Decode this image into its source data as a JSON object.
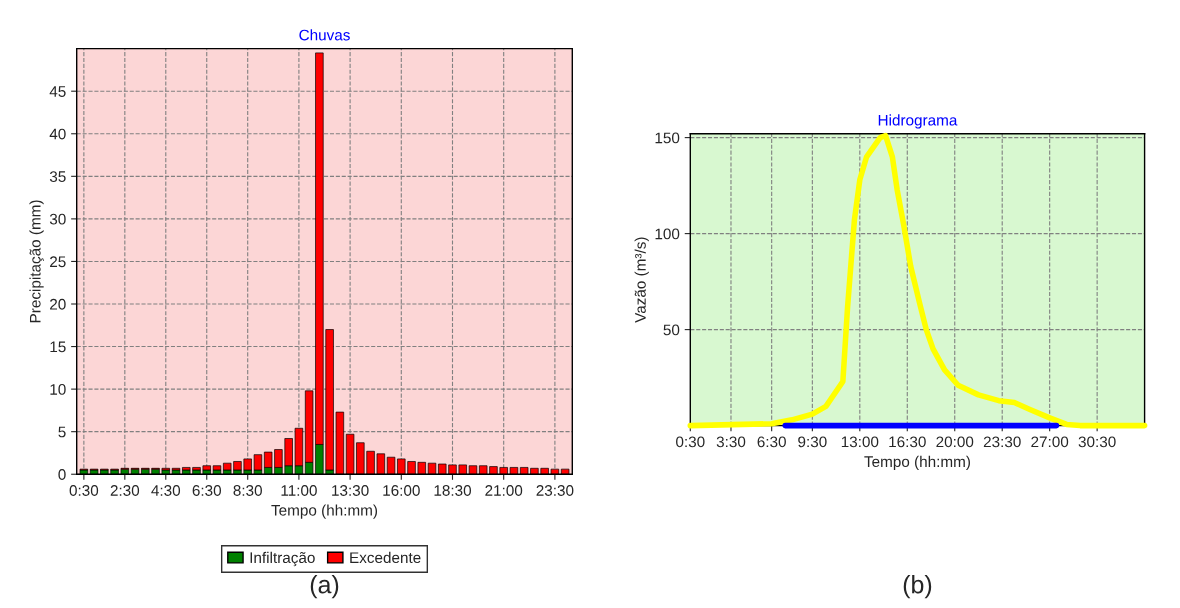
{
  "chart_data": [
    {
      "type": "bar",
      "title": "Chuvas",
      "xlabel": "Tempo (hh:mm)",
      "ylabel": "Precipitação (mm)",
      "stacked": true,
      "categories": [
        "0:30",
        null,
        null,
        null,
        "2:30",
        null,
        null,
        null,
        "4:30",
        null,
        null,
        null,
        "6:30",
        null,
        null,
        null,
        "8:30",
        null,
        null,
        null,
        null,
        "11:00",
        null,
        null,
        null,
        null,
        "13:30",
        null,
        null,
        null,
        null,
        "16:00",
        null,
        null,
        null,
        null,
        "18:30",
        null,
        null,
        null,
        null,
        "21:00",
        null,
        null,
        null,
        null,
        "23:30",
        null
      ],
      "series": [
        {
          "name": "Infiltração",
          "color": "#008000",
          "values": [
            0.5,
            0.5,
            0.5,
            0.5,
            0.6,
            0.6,
            0.6,
            0.6,
            0.5,
            0.5,
            0.5,
            0.5,
            0.5,
            0.5,
            0.5,
            0.5,
            0.5,
            0.5,
            0.8,
            0.8,
            1.0,
            1.0,
            1.4,
            3.5,
            0.5,
            0,
            0,
            0,
            0,
            0,
            0,
            0,
            0,
            0,
            0,
            0,
            0,
            0,
            0,
            0,
            0,
            0,
            0,
            0,
            0,
            0,
            0,
            0
          ]
        },
        {
          "name": "Excedente",
          "color": "#ff0000",
          "values": [
            0.1,
            0.1,
            0.1,
            0.1,
            0.1,
            0.1,
            0.1,
            0.1,
            0.2,
            0.2,
            0.3,
            0.3,
            0.5,
            0.5,
            0.8,
            1.0,
            1.3,
            1.8,
            1.8,
            2.1,
            3.2,
            4.4,
            8.4,
            46.0,
            16.5,
            7.3,
            4.7,
            3.7,
            2.7,
            2.4,
            2.0,
            1.8,
            1.5,
            1.4,
            1.3,
            1.2,
            1.1,
            1.1,
            1.0,
            1.0,
            0.9,
            0.8,
            0.8,
            0.8,
            0.7,
            0.7,
            0.6,
            0.6
          ]
        }
      ],
      "ylim": [
        0,
        50
      ],
      "yticks": [
        0,
        5,
        10,
        15,
        20,
        25,
        30,
        35,
        40,
        45
      ],
      "grid": true,
      "legend": "bottom",
      "annotations": [
        "(a)"
      ]
    },
    {
      "type": "line",
      "title": "Hidrograma",
      "xlabel": "Tempo (hh:mm)",
      "ylabel": "Vazão (m³/s)",
      "series": [
        {
          "color": "#ffff00",
          "x": [
            0.5,
            6.5,
            8,
            9.5,
            10.5,
            11.75,
            12.1,
            12.6,
            13,
            13.5,
            14.5,
            14.9,
            15.4,
            15.75,
            16.25,
            16.75,
            17.4,
            17.9,
            18.4,
            19.25,
            20.25,
            21.75,
            23.25,
            24.4,
            25.5,
            27,
            28.25,
            29.25,
            34
          ],
          "values": [
            0,
            1,
            3,
            6,
            10,
            23,
            62,
            107,
            128,
            140,
            150,
            151,
            140,
            123,
            104,
            83,
            64,
            50,
            40,
            29,
            21,
            16,
            13,
            12,
            8.5,
            4,
            0.6,
            0,
            0
          ]
        },
        {
          "color": "#0000ff",
          "x": [
            7.5,
            27.5
          ],
          "values": [
            0,
            0
          ]
        }
      ],
      "xlim": [
        0.5,
        34
      ],
      "xticks": [
        {
          "value": 0.5,
          "label": "0:30"
        },
        {
          "value": 3.5,
          "label": "3:30"
        },
        {
          "value": 6.5,
          "label": "6:30"
        },
        {
          "value": 9.5,
          "label": "9:30"
        },
        {
          "value": 13,
          "label": "13:00"
        },
        {
          "value": 16.5,
          "label": "16:30"
        },
        {
          "value": 20,
          "label": "20:00"
        },
        {
          "value": 23.5,
          "label": "23:30"
        },
        {
          "value": 27,
          "label": "27:00"
        },
        {
          "value": 30.5,
          "label": "30:30"
        }
      ],
      "ylim": [
        0,
        152
      ],
      "yticks": [
        50,
        100,
        150
      ],
      "grid": true,
      "annotations": [
        "(b)"
      ]
    }
  ]
}
